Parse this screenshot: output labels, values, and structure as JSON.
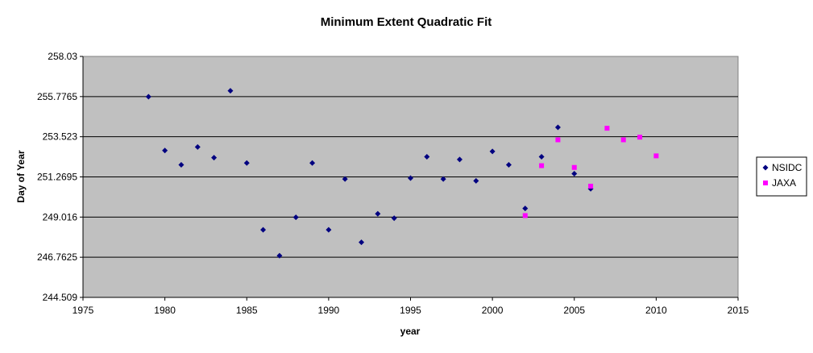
{
  "chart_data": {
    "type": "scatter",
    "title": "Minimum Extent Quadratic Fit",
    "xlabel": "year",
    "ylabel": "Day of Year",
    "xlim": [
      1975,
      2015
    ],
    "ylim": [
      244.509,
      258.03
    ],
    "x_ticks": [
      "1975",
      "1980",
      "1985",
      "1990",
      "1995",
      "2000",
      "2005",
      "2010",
      "2015"
    ],
    "y_ticks": [
      "244.509",
      "246.7625",
      "249.016",
      "251.2695",
      "253.523",
      "255.7765",
      "258.03"
    ],
    "grid": true,
    "legend_position": "right",
    "colors": {
      "plot_bg": "#c0c0c0",
      "NSIDC": "#000080",
      "JAXA": "#ff00ff"
    },
    "series": [
      {
        "name": "NSIDC",
        "marker": "diamond",
        "points": [
          [
            1979,
            255.77
          ],
          [
            1980,
            252.75
          ],
          [
            1981,
            251.95
          ],
          [
            1982,
            252.95
          ],
          [
            1983,
            252.35
          ],
          [
            1984,
            256.1
          ],
          [
            1985,
            252.05
          ],
          [
            1986,
            248.3
          ],
          [
            1987,
            246.85
          ],
          [
            1988,
            249.0
          ],
          [
            1989,
            252.05
          ],
          [
            1990,
            248.3
          ],
          [
            1991,
            251.15
          ],
          [
            1992,
            247.6
          ],
          [
            1993,
            249.2
          ],
          [
            1994,
            248.95
          ],
          [
            1995,
            251.2
          ],
          [
            1996,
            252.4
          ],
          [
            1997,
            251.15
          ],
          [
            1998,
            252.25
          ],
          [
            1999,
            251.05
          ],
          [
            2000,
            252.7
          ],
          [
            2001,
            251.95
          ],
          [
            2002,
            249.5
          ],
          [
            2003,
            252.4
          ],
          [
            2004,
            254.05
          ],
          [
            2005,
            251.45
          ],
          [
            2006,
            250.6
          ]
        ]
      },
      {
        "name": "JAXA",
        "marker": "square",
        "points": [
          [
            2002,
            249.1
          ],
          [
            2003,
            251.9
          ],
          [
            2004,
            253.35
          ],
          [
            2005,
            251.8
          ],
          [
            2006,
            250.75
          ],
          [
            2007,
            254.0
          ],
          [
            2008,
            253.35
          ],
          [
            2009,
            253.5
          ],
          [
            2010,
            252.45
          ]
        ]
      }
    ]
  }
}
